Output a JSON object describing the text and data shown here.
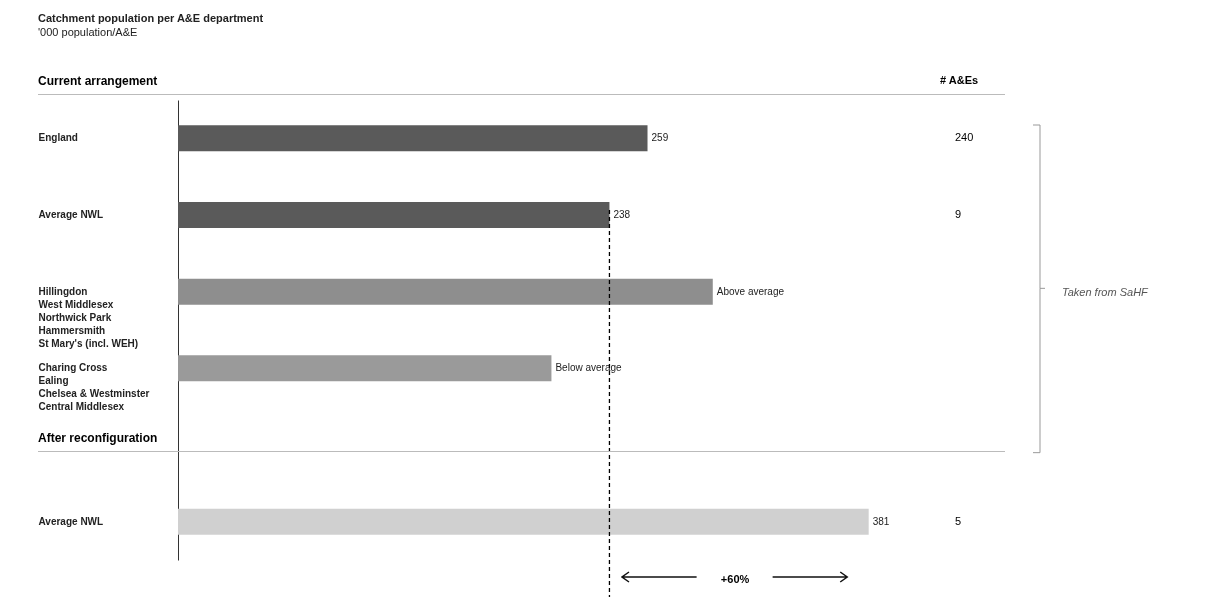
{
  "chart_data": {
    "type": "bar",
    "orientation": "horizontal",
    "title": "Catchment population per A&E department",
    "subtitle": "'000 population/A&E",
    "categories": [
      "England",
      "Average NWL",
      "Hillingdon\nWest Middlesex\nNorthwick Park\nHammersmith\nSt Mary's (incl. WEH)",
      "Charing Cross\nEaling\nChelsea & Westminster\nCentral Middlesex",
      "Average NWL"
    ],
    "values": [
      259,
      238,
      295,
      206,
      381
    ],
    "colors": [
      "#5a5a5a",
      "#5a5a5a",
      "#8e8e8e",
      "#9a9a9a",
      "#d0d0d0"
    ],
    "value_labels": [
      "259",
      "238",
      "Above average",
      "Below average",
      "381"
    ],
    "ref_lines": [
      {
        "axis": "x",
        "value": 238,
        "line_style": "dashed"
      }
    ],
    "annotations": [
      "Current arrangement",
      "After reconfiguration",
      "# A&Es",
      "240",
      "9",
      "5",
      "Taken from SaHF",
      "+60%"
    ],
    "grid": false
  }
}
